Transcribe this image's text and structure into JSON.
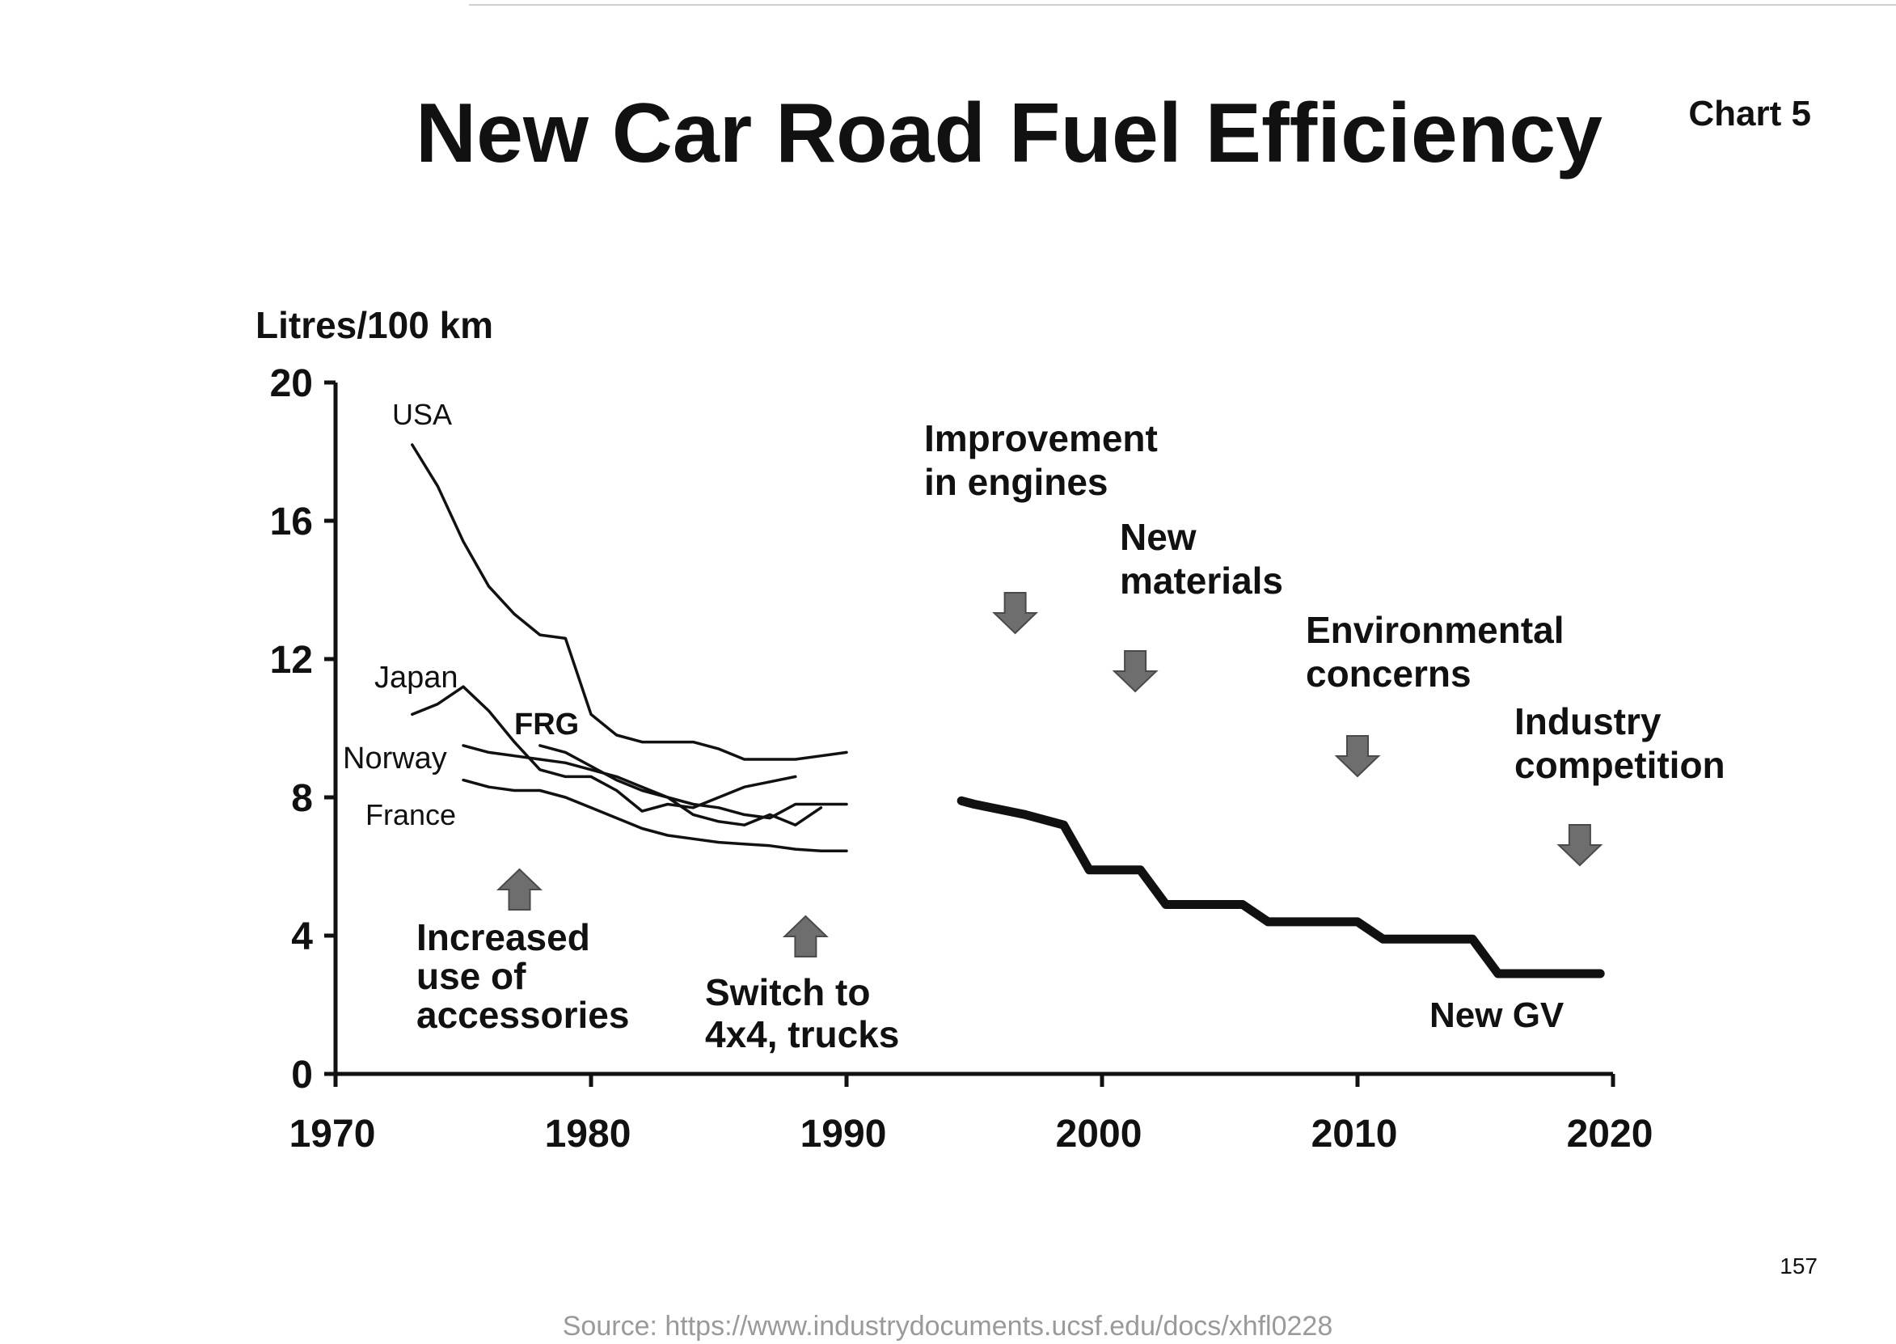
{
  "page": {
    "title": "New Car Road Fuel Efficiency",
    "chart_number": "Chart 5",
    "page_number": "157",
    "source": "Source: https://www.industrydocuments.ucsf.edu/docs/xhfl0228"
  },
  "chart_data": {
    "type": "line",
    "title": "New Car Road Fuel Efficiency",
    "xlabel": "",
    "ylabel": "Litres/100 km",
    "xlim": [
      1970,
      2020
    ],
    "ylim": [
      0,
      20
    ],
    "x_ticks": [
      "1970",
      "1980",
      "1990",
      "2000",
      "2010",
      "2020"
    ],
    "y_ticks": [
      "0",
      "4",
      "8",
      "12",
      "16",
      "20"
    ],
    "grid": false,
    "series": [
      {
        "name": "USA",
        "line_style": "thin",
        "points": [
          [
            1973,
            18.2
          ],
          [
            1974,
            17
          ],
          [
            1975,
            15.4
          ],
          [
            1976,
            14.1
          ],
          [
            1977,
            13.3
          ],
          [
            1978,
            12.7
          ],
          [
            1979,
            12.6
          ],
          [
            1980,
            10.4
          ],
          [
            1981,
            9.8
          ],
          [
            1982,
            9.6
          ],
          [
            1983,
            9.6
          ],
          [
            1984,
            9.6
          ],
          [
            1985,
            9.4
          ],
          [
            1986,
            9.1
          ],
          [
            1987,
            9.1
          ],
          [
            1988,
            9.1
          ],
          [
            1989,
            9.2
          ],
          [
            1990,
            9.3
          ]
        ]
      },
      {
        "name": "Japan",
        "line_style": "thin",
        "points": [
          [
            1973,
            10.4
          ],
          [
            1974,
            10.7
          ],
          [
            1975,
            11.2
          ],
          [
            1976,
            10.5
          ],
          [
            1977,
            9.6
          ],
          [
            1978,
            8.8
          ],
          [
            1979,
            8.6
          ],
          [
            1980,
            8.6
          ],
          [
            1981,
            8.2
          ],
          [
            1982,
            7.6
          ],
          [
            1983,
            7.8
          ],
          [
            1984,
            7.7
          ],
          [
            1985,
            8.0
          ],
          [
            1986,
            8.3
          ],
          [
            1987,
            8.45
          ],
          [
            1988,
            8.6
          ]
        ]
      },
      {
        "name": "FRG",
        "line_style": "thin",
        "points": [
          [
            1978,
            9.5
          ],
          [
            1979,
            9.3
          ],
          [
            1980,
            8.9
          ],
          [
            1981,
            8.5
          ],
          [
            1982,
            8.2
          ],
          [
            1983,
            8.0
          ],
          [
            1984,
            7.5
          ],
          [
            1985,
            7.3
          ],
          [
            1986,
            7.2
          ],
          [
            1987,
            7.5
          ],
          [
            1988,
            7.2
          ],
          [
            1989,
            7.7
          ]
        ]
      },
      {
        "name": "Norway",
        "line_style": "thin",
        "points": [
          [
            1975,
            9.5
          ],
          [
            1976,
            9.3
          ],
          [
            1977,
            9.2
          ],
          [
            1978,
            9.1
          ],
          [
            1979,
            9.0
          ],
          [
            1980,
            8.8
          ],
          [
            1981,
            8.6
          ],
          [
            1982,
            8.3
          ],
          [
            1983,
            8.0
          ],
          [
            1984,
            7.8
          ],
          [
            1985,
            7.7
          ],
          [
            1986,
            7.5
          ],
          [
            1987,
            7.4
          ],
          [
            1988,
            7.8
          ],
          [
            1989,
            7.8
          ],
          [
            1990,
            7.8
          ]
        ]
      },
      {
        "name": "France",
        "line_style": "thin",
        "points": [
          [
            1975,
            8.5
          ],
          [
            1976,
            8.3
          ],
          [
            1977,
            8.2
          ],
          [
            1978,
            8.2
          ],
          [
            1979,
            8.0
          ],
          [
            1980,
            7.7
          ],
          [
            1981,
            7.4
          ],
          [
            1982,
            7.1
          ],
          [
            1983,
            6.9
          ],
          [
            1984,
            6.8
          ],
          [
            1985,
            6.7
          ],
          [
            1986,
            6.65
          ],
          [
            1987,
            6.6
          ],
          [
            1988,
            6.5
          ],
          [
            1989,
            6.45
          ],
          [
            1990,
            6.45
          ]
        ]
      },
      {
        "name": "New GV",
        "line_style": "thick",
        "points": [
          [
            1994.5,
            7.9
          ],
          [
            1995,
            7.8
          ],
          [
            1997,
            7.5
          ],
          [
            1998.5,
            7.2
          ],
          [
            1999.5,
            5.9
          ],
          [
            2001.5,
            5.9
          ],
          [
            2002.5,
            4.9
          ],
          [
            2005.5,
            4.9
          ],
          [
            2006.5,
            4.4
          ],
          [
            2010,
            4.4
          ],
          [
            2011,
            3.9
          ],
          [
            2014.5,
            3.9
          ],
          [
            2015.5,
            2.9
          ],
          [
            2019.5,
            2.9
          ]
        ]
      }
    ],
    "annotations": {
      "accessories": {
        "lines": [
          "Increased",
          "use of",
          "accessories"
        ],
        "arrow": "up",
        "year": 1977.2
      },
      "trucks": {
        "lines": [
          "Switch to",
          "4x4, trucks"
        ],
        "arrow": "up",
        "year": 1988.4
      },
      "engines": {
        "lines": [
          "Improvement",
          "in engines"
        ],
        "arrow": "down",
        "year": 1996.6
      },
      "materials": {
        "lines": [
          "New",
          "materials"
        ],
        "arrow": "down",
        "year": 2001.3
      },
      "environment": {
        "lines": [
          "Environmental",
          "concerns"
        ],
        "arrow": "down",
        "year": 2010
      },
      "competition": {
        "lines": [
          "Industry",
          "competition"
        ],
        "arrow": "down",
        "year": 2018.7
      }
    }
  }
}
